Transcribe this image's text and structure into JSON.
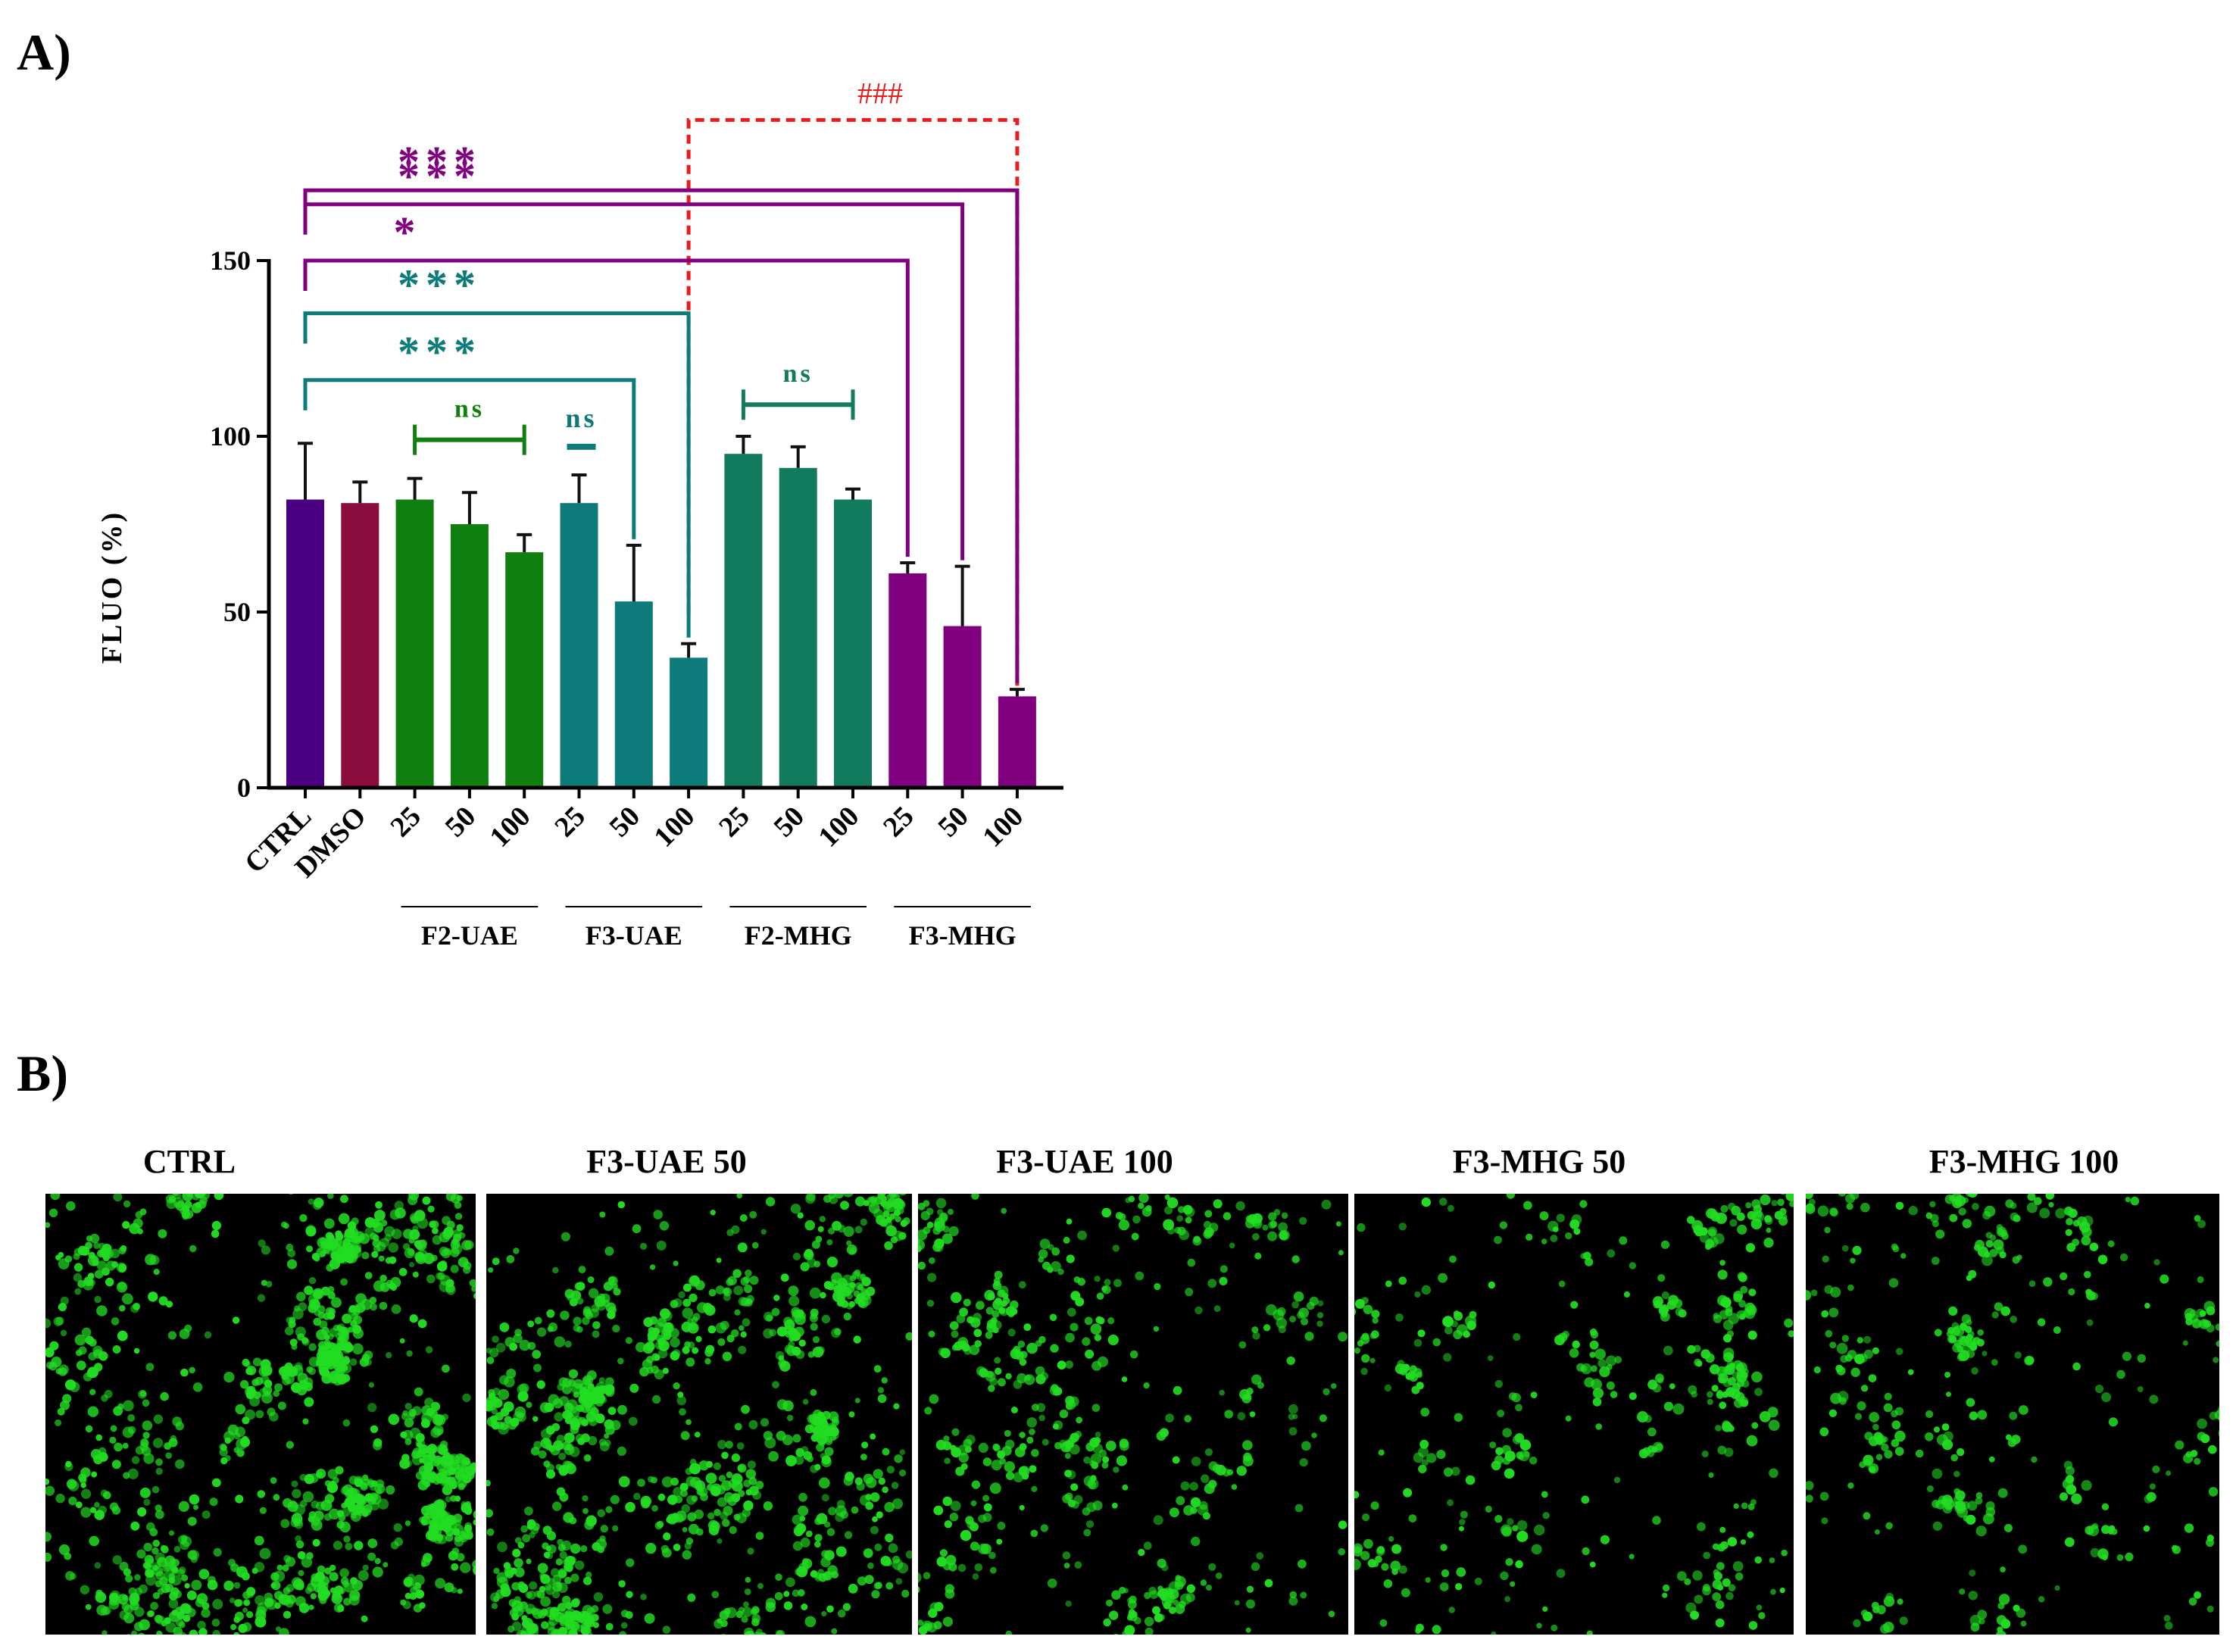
{
  "panel_a_label": "A)",
  "panel_b_label": "B)",
  "chart_data": {
    "type": "bar",
    "ylabel": "FLUO (%)",
    "xlabel": "",
    "ylim": [
      0,
      150
    ],
    "yticks": [
      0,
      50,
      100,
      150
    ],
    "yticks_labels": [
      "0",
      "50",
      "100",
      "150"
    ],
    "categories": [
      "CTRL",
      "DMSO",
      "25",
      "50",
      "100",
      "25",
      "50",
      "100",
      "25",
      "50",
      "100",
      "25",
      "50",
      "100"
    ],
    "values": [
      82,
      81,
      82,
      75,
      67,
      81,
      53,
      37,
      95,
      91,
      82,
      61,
      46,
      26
    ],
    "errors": [
      16,
      6,
      6,
      9,
      5,
      8,
      16,
      4,
      5,
      6,
      3,
      3,
      17,
      2
    ],
    "colors": [
      "#4B0082",
      "#8B0D3E",
      "#0F7F0F",
      "#0F7F0F",
      "#0F7F0F",
      "#0E7B7B",
      "#0E7B7B",
      "#0E7B7B",
      "#127A5D",
      "#127A5D",
      "#127A5D",
      "#800080",
      "#800080",
      "#800080"
    ],
    "groups": [
      {
        "label": "F2-UAE",
        "start": 2,
        "end": 4
      },
      {
        "label": "F3-UAE",
        "start": 5,
        "end": 7
      },
      {
        "label": "F2-MHG",
        "start": 8,
        "end": 10
      },
      {
        "label": "F3-MHG",
        "start": 11,
        "end": 13
      }
    ],
    "annotations": [
      {
        "type": "dashed",
        "text": "###",
        "from": 7,
        "to": 13,
        "level": 190,
        "color": "#E81C1C"
      },
      {
        "type": "bracket",
        "text": "***",
        "from": 0,
        "to": 13,
        "level": 170,
        "color": "#800080"
      },
      {
        "type": "bracket",
        "text": "***",
        "from": 0,
        "to": 12,
        "level": 166,
        "color": "#800080"
      },
      {
        "type": "bracket",
        "text": "*",
        "from": 0,
        "to": 11,
        "level": 150,
        "color": "#800080"
      },
      {
        "type": "bracket",
        "text": "***",
        "from": 0,
        "to": 7,
        "level": 135,
        "color": "#0E7B7B"
      },
      {
        "type": "bracket",
        "text": "***",
        "from": 0,
        "to": 6,
        "level": 116,
        "color": "#0E7B7B"
      },
      {
        "type": "capbar",
        "text": "ns",
        "from": 2,
        "to": 4,
        "level": 99,
        "color": "#0F7F0F"
      },
      {
        "type": "dash",
        "text": "ns",
        "from": 5,
        "to": 5,
        "level": 97,
        "color": "#0E7B7B"
      },
      {
        "type": "capbar",
        "text": "ns",
        "from": 8,
        "to": 10,
        "level": 109,
        "color": "#127A5D"
      }
    ]
  },
  "micrographs": [
    {
      "title": "CTRL",
      "density": 1.0,
      "color": "#22DD22"
    },
    {
      "title": "F3-UAE 50",
      "density": 0.88,
      "color": "#22DD22"
    },
    {
      "title": "F3-UAE 100",
      "density": 0.55,
      "color": "#22DD22"
    },
    {
      "title": "F3-MHG 50",
      "density": 0.42,
      "color": "#22DD22"
    },
    {
      "title": "F3-MHG 100",
      "density": 0.38,
      "color": "#22DD22"
    }
  ]
}
